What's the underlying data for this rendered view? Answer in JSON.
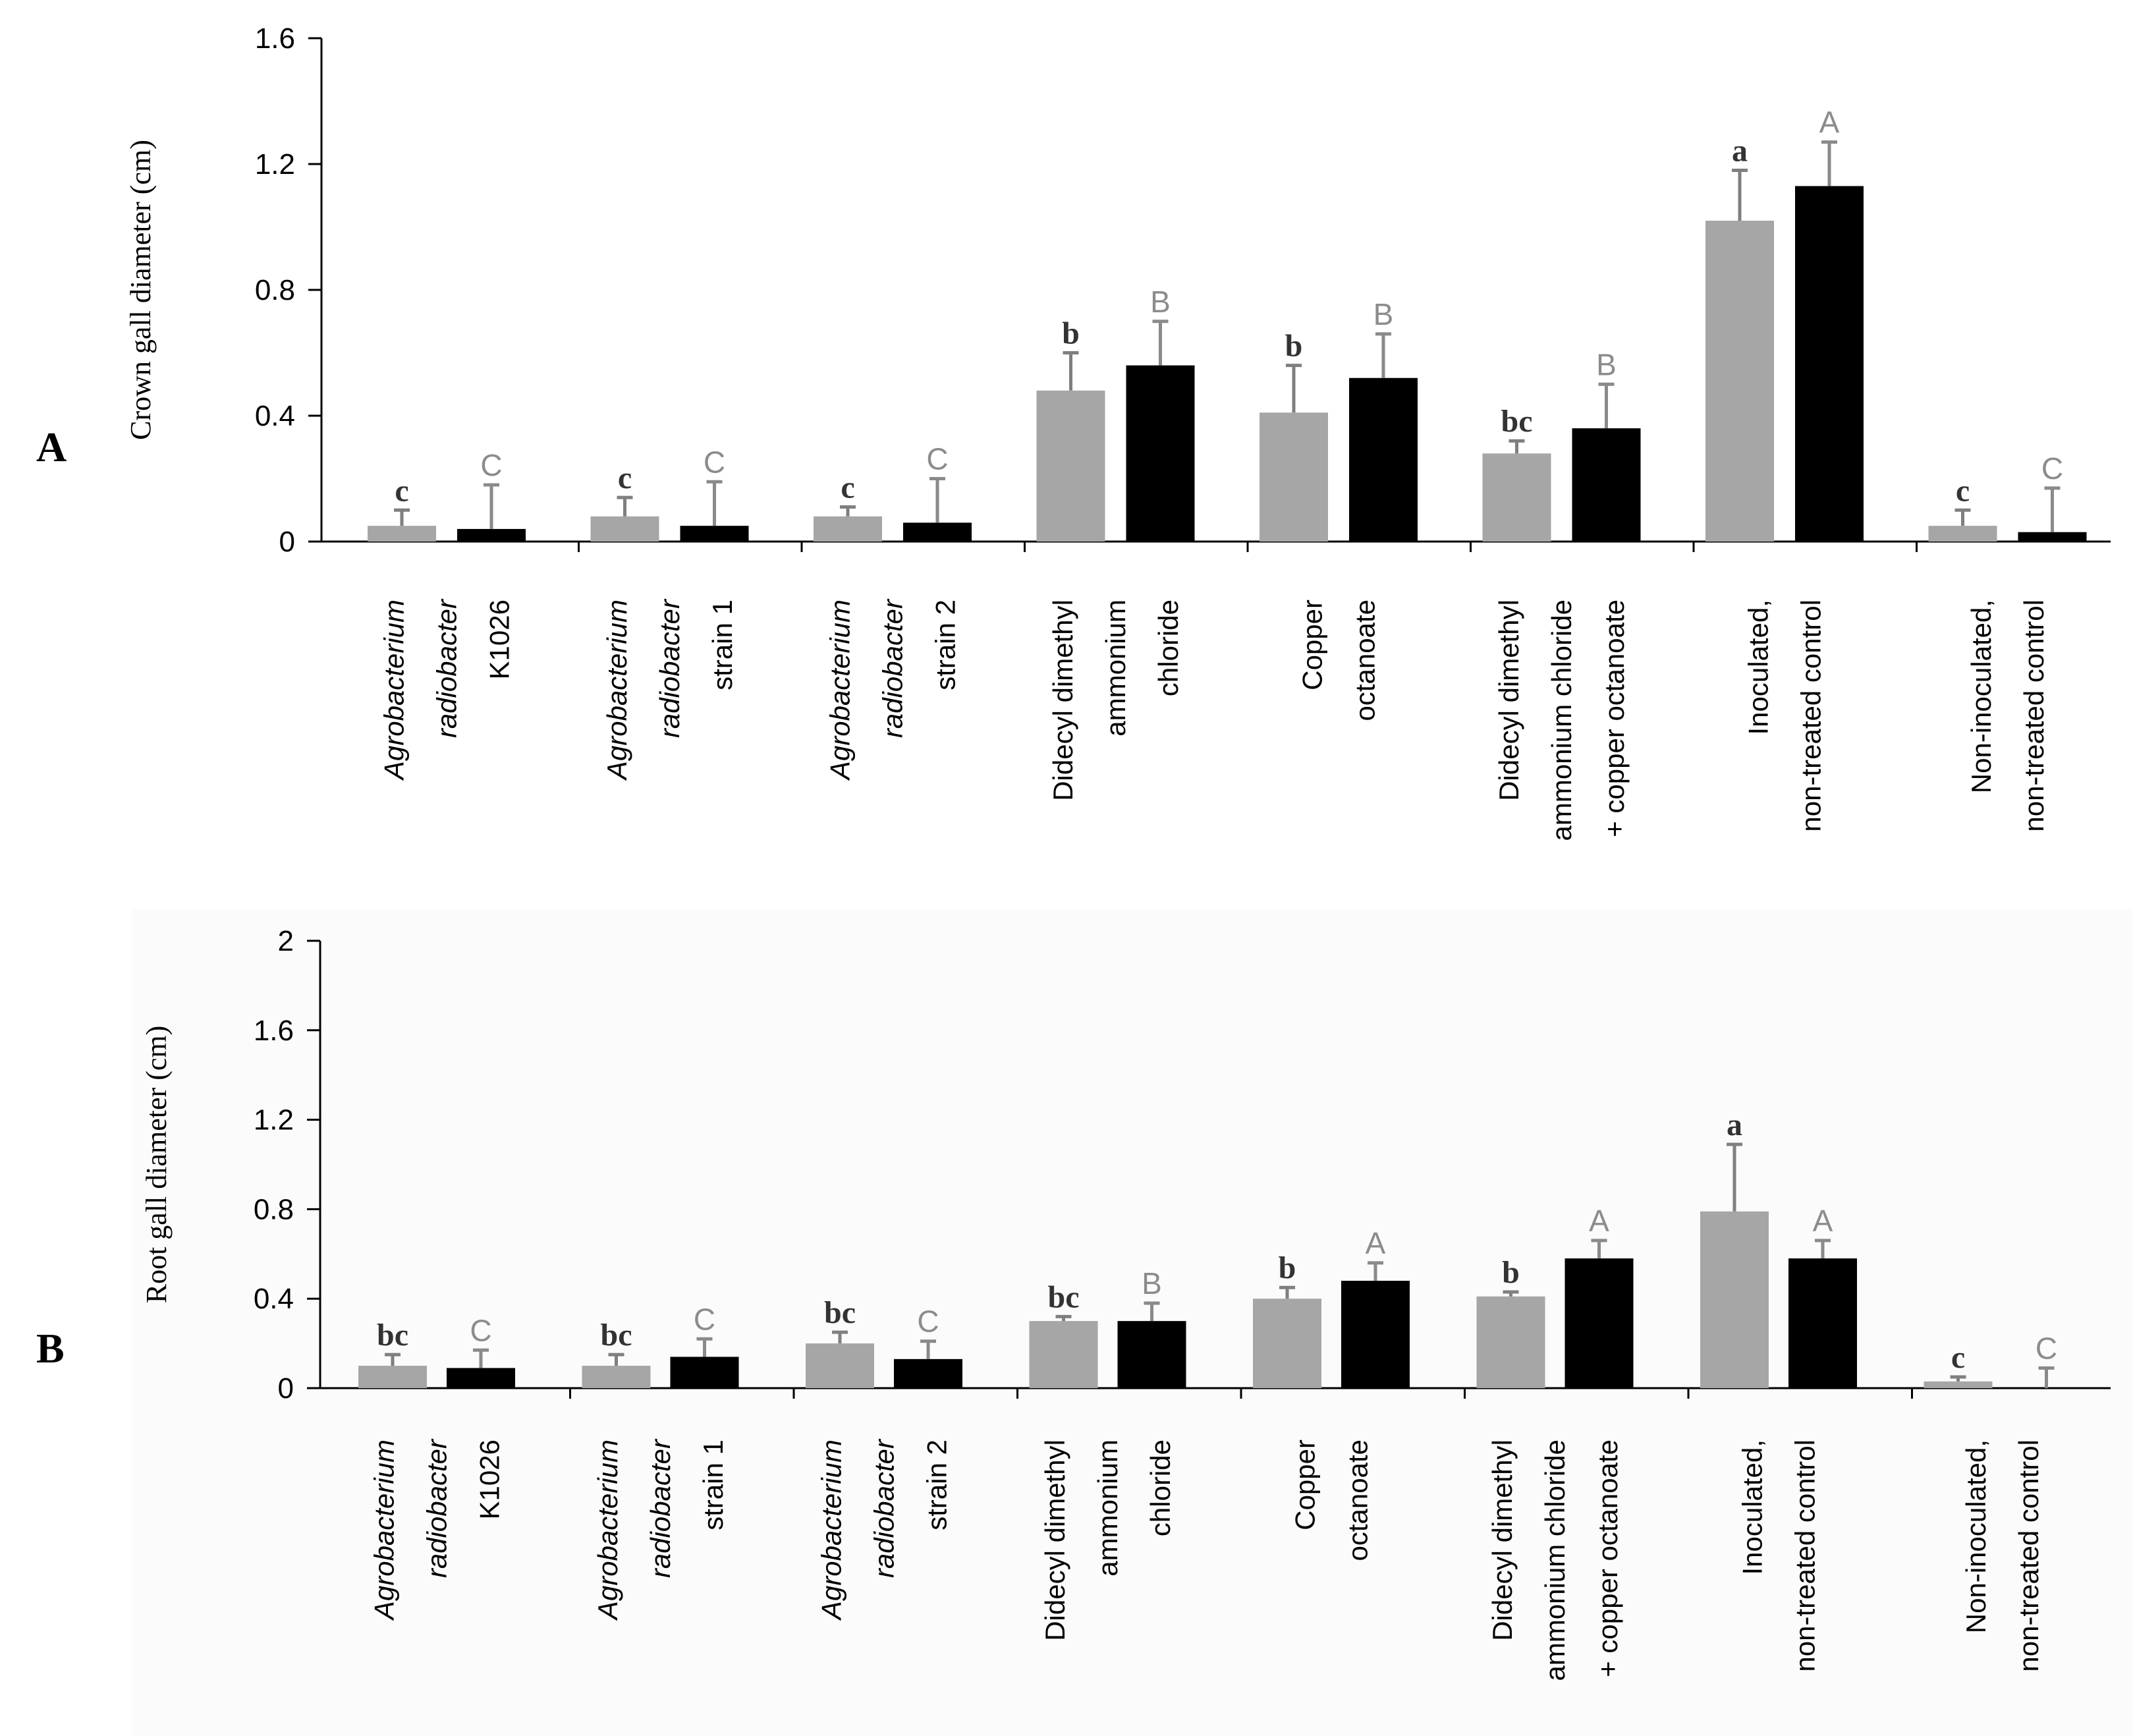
{
  "figure": {
    "panels": [
      "A",
      "B"
    ]
  },
  "colors": {
    "series_1": "#a6a6a6",
    "series_2": "#000000",
    "axis": "#000000",
    "error_bar_1": "#7f7f7f",
    "error_bar_2": "#8a8a8a",
    "letter_lower": "#333333",
    "letter_upper": "#8c8c8c",
    "panel_b_background": "#fbfbfb"
  },
  "chart_data": [
    {
      "panel_label": "A",
      "type": "bar",
      "title": "",
      "xlabel": "",
      "ylabel": "Crown gall diameter (cm)",
      "ylim": [
        0,
        1.6
      ],
      "yticks": [
        "0",
        "0.4",
        "0.8",
        "1.2",
        "1.6"
      ],
      "grid": false,
      "legend": "none",
      "categories": [
        {
          "lines": [
            "Agrobacterium",
            "radiobacter",
            "K1026"
          ],
          "italic": [
            true,
            true,
            false
          ]
        },
        {
          "lines": [
            "Agrobacterium",
            "radiobacter",
            "strain 1"
          ],
          "italic": [
            true,
            true,
            false
          ]
        },
        {
          "lines": [
            "Agrobacterium",
            "radiobacter",
            "strain 2"
          ],
          "italic": [
            true,
            true,
            false
          ]
        },
        {
          "lines": [
            "Didecyl dimethyl",
            "ammonium",
            "chloride"
          ],
          "italic": [
            false,
            false,
            false
          ]
        },
        {
          "lines": [
            "Copper",
            "octanoate"
          ],
          "italic": [
            false,
            false
          ]
        },
        {
          "lines": [
            "Didecyl dimethyl",
            "ammonium chloride",
            "+ copper octanoate"
          ],
          "italic": [
            false,
            false,
            false
          ]
        },
        {
          "lines": [
            "Inoculated,",
            "non-treated control"
          ],
          "italic": [
            false,
            false
          ]
        },
        {
          "lines": [
            "Non-inoculated,",
            "non-treated control"
          ],
          "italic": [
            false,
            false
          ]
        }
      ],
      "series": [
        {
          "name": "gray",
          "values": [
            0.05,
            0.08,
            0.08,
            0.48,
            0.41,
            0.28,
            1.02,
            0.05
          ],
          "errors": [
            0.05,
            0.06,
            0.03,
            0.12,
            0.15,
            0.04,
            0.16,
            0.05
          ],
          "letters": [
            "c",
            "c",
            "c",
            "b",
            "b",
            "bc",
            "a",
            "c"
          ]
        },
        {
          "name": "black",
          "values": [
            0.04,
            0.05,
            0.06,
            0.56,
            0.52,
            0.36,
            1.13,
            0.03
          ],
          "errors": [
            0.14,
            0.14,
            0.14,
            0.14,
            0.14,
            0.14,
            0.14,
            0.14
          ],
          "letters": [
            "C",
            "C",
            "C",
            "B",
            "B",
            "B",
            "A",
            "C"
          ]
        }
      ]
    },
    {
      "panel_label": "B",
      "type": "bar",
      "title": "",
      "xlabel": "",
      "ylabel": "Root gall diameter (cm)",
      "ylim": [
        0,
        2
      ],
      "yticks": [
        "0",
        "0.4",
        "0.8",
        "1.2",
        "1.6",
        "2"
      ],
      "grid": false,
      "legend": "none",
      "categories": [
        {
          "lines": [
            "Agrobacterium",
            "radiobacter",
            "K1026"
          ],
          "italic": [
            true,
            true,
            false
          ]
        },
        {
          "lines": [
            "Agrobacterium",
            "radiobacter",
            "strain 1"
          ],
          "italic": [
            true,
            true,
            false
          ]
        },
        {
          "lines": [
            "Agrobacterium",
            "radiobacter",
            "strain 2"
          ],
          "italic": [
            true,
            true,
            false
          ]
        },
        {
          "lines": [
            "Didecyl dimethyl",
            "ammonium",
            "chloride"
          ],
          "italic": [
            false,
            false,
            false
          ]
        },
        {
          "lines": [
            "Copper",
            "octanoate"
          ],
          "italic": [
            false,
            false
          ]
        },
        {
          "lines": [
            "Didecyl dimethyl",
            "ammonium chloride",
            "+ copper octanoate"
          ],
          "italic": [
            false,
            false,
            false
          ]
        },
        {
          "lines": [
            "Inoculated,",
            "non-treated control"
          ],
          "italic": [
            false,
            false
          ]
        },
        {
          "lines": [
            "Non-inoculated,",
            "non-treated control"
          ],
          "italic": [
            false,
            false
          ]
        }
      ],
      "series": [
        {
          "name": "gray",
          "values": [
            0.1,
            0.1,
            0.2,
            0.3,
            0.4,
            0.41,
            0.79,
            0.03
          ],
          "errors": [
            0.05,
            0.05,
            0.05,
            0.02,
            0.05,
            0.02,
            0.3,
            0.02
          ],
          "letters": [
            "bc",
            "bc",
            "bc",
            "bc",
            "b",
            "b",
            "a",
            "c"
          ]
        },
        {
          "name": "black",
          "values": [
            0.09,
            0.14,
            0.13,
            0.3,
            0.48,
            0.58,
            0.58,
            0.0
          ],
          "errors": [
            0.08,
            0.08,
            0.08,
            0.08,
            0.08,
            0.08,
            0.08,
            0.09
          ],
          "letters": [
            "C",
            "C",
            "C",
            "B",
            "A",
            "A",
            "A",
            "C"
          ]
        }
      ]
    }
  ]
}
